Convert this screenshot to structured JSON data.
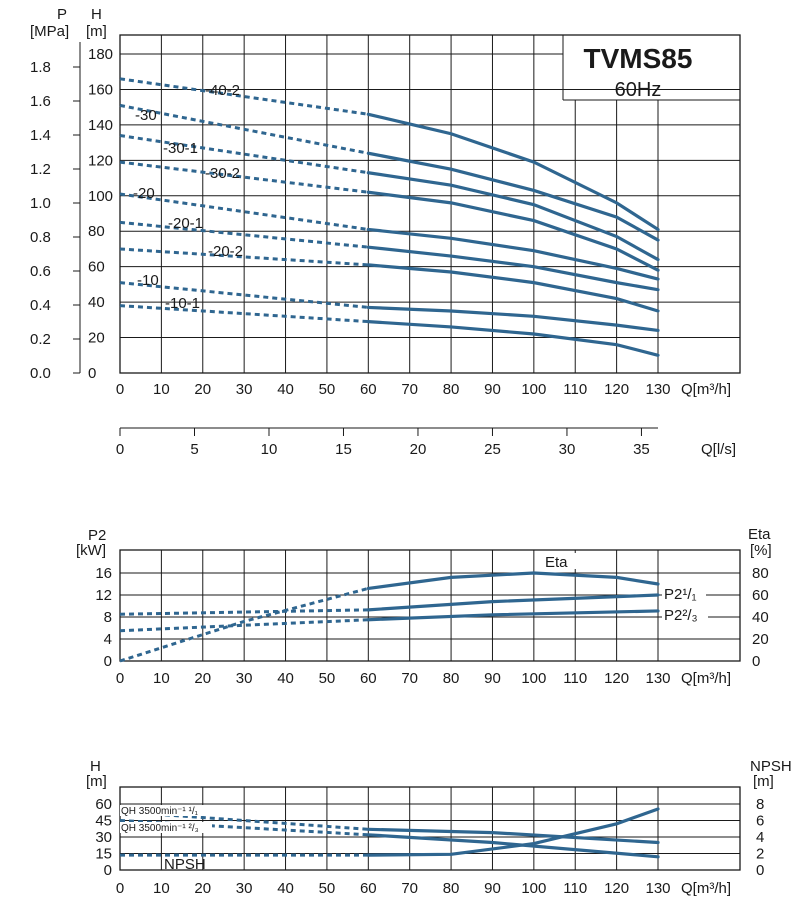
{
  "chart_data": [
    {
      "type": "line",
      "title": "TVMS85",
      "subtitle": "60Hz",
      "xlabel": "Q[m³/h]",
      "x2label": "Q[l/s]",
      "ylabel_left": "P [MPa]",
      "ylabel_right": "H [m]",
      "xlim": [
        0,
        130
      ],
      "ylim": [
        0,
        190
      ],
      "x_ticks": [
        0,
        10,
        20,
        30,
        40,
        50,
        60,
        70,
        80,
        90,
        100,
        110,
        120,
        130
      ],
      "y_ticks": [
        0,
        20,
        40,
        60,
        80,
        100,
        120,
        140,
        160,
        180
      ],
      "p_ticks": [
        "0.0",
        "0.2",
        "0.4",
        "0.6",
        "0.8",
        "1.0",
        "1.2",
        "1.4",
        "1.6",
        "1.8"
      ],
      "ls_ticks": [
        0,
        5,
        10,
        15,
        20,
        25,
        30,
        35
      ],
      "solid_from": 60,
      "series": [
        {
          "name": "-40-2",
          "x": [
            0,
            60,
            80,
            100,
            120,
            130
          ],
          "y": [
            166,
            146,
            135,
            119,
            96,
            81
          ]
        },
        {
          "name": "-30",
          "x": [
            0,
            60,
            80,
            100,
            120,
            130
          ],
          "y": [
            151,
            124,
            115,
            103,
            88,
            75
          ]
        },
        {
          "name": "-30-1",
          "x": [
            0,
            60,
            80,
            100,
            120,
            130
          ],
          "y": [
            134,
            113,
            106,
            95,
            77,
            64
          ]
        },
        {
          "name": "-30-2",
          "x": [
            0,
            60,
            80,
            100,
            120,
            130
          ],
          "y": [
            119,
            102,
            96,
            86,
            70,
            58
          ]
        },
        {
          "name": "-20",
          "x": [
            0,
            60,
            80,
            100,
            120,
            130
          ],
          "y": [
            101,
            81,
            76,
            69,
            59,
            53
          ]
        },
        {
          "name": "-20-1",
          "x": [
            0,
            60,
            80,
            100,
            120,
            130
          ],
          "y": [
            85,
            71,
            66,
            60,
            51,
            47
          ]
        },
        {
          "name": "-20-2",
          "x": [
            0,
            60,
            80,
            100,
            120,
            130
          ],
          "y": [
            70,
            61,
            57,
            51,
            42,
            35
          ]
        },
        {
          "name": "-10",
          "x": [
            0,
            60,
            80,
            100,
            120,
            130
          ],
          "y": [
            51,
            37,
            35,
            32,
            27,
            24
          ]
        },
        {
          "name": "-10-1",
          "x": [
            0,
            60,
            80,
            100,
            120,
            130
          ],
          "y": [
            38,
            29,
            26,
            22,
            16,
            10
          ]
        }
      ]
    },
    {
      "type": "line",
      "xlabel": "Q[m³/h]",
      "ylabel_left": "P2 [kW]",
      "ylabel_right": "Eta [%]",
      "xlim": [
        0,
        130
      ],
      "ylim": [
        0,
        18
      ],
      "y_ticks": [
        0,
        4,
        8,
        12,
        16
      ],
      "eta_ticks": [
        0,
        20,
        40,
        60,
        80
      ],
      "solid_from": 60,
      "series": [
        {
          "name": "Eta",
          "x": [
            0,
            30,
            60,
            80,
            100,
            120,
            130
          ],
          "y": [
            0,
            36,
            66,
            76,
            80,
            76,
            70
          ],
          "axis": "right"
        },
        {
          "name": "P2¹/₁",
          "x": [
            0,
            60,
            90,
            130
          ],
          "y": [
            8.5,
            9.3,
            10.8,
            12.0
          ]
        },
        {
          "name": "P2²/₃",
          "x": [
            0,
            60,
            90,
            130
          ],
          "y": [
            5.5,
            7.5,
            8.4,
            9.1
          ]
        }
      ]
    },
    {
      "type": "line",
      "xlabel": "Q[m³/h]",
      "ylabel_left": "H [m]",
      "ylabel_right": "NPSH [m]",
      "xlim": [
        0,
        130
      ],
      "ylim": [
        0,
        65
      ],
      "y_ticks": [
        0,
        15,
        30,
        45,
        60
      ],
      "npsh_ticks": [
        0,
        2,
        4,
        6,
        8
      ],
      "solid_from": 60,
      "series": [
        {
          "name": "QH 3500min⁻¹ ¹/₁",
          "x": [
            0,
            60,
            90,
            130
          ],
          "y": [
            53,
            37,
            34,
            25
          ]
        },
        {
          "name": "QH 3500min⁻¹ ²/₃",
          "x": [
            0,
            60,
            90,
            130
          ],
          "y": [
            45,
            32,
            25,
            12
          ]
        },
        {
          "name": "NPSH",
          "x": [
            0,
            60,
            80,
            100,
            120,
            130
          ],
          "y": [
            1.8,
            1.8,
            1.9,
            3.2,
            5.6,
            7.4
          ],
          "axis": "right"
        }
      ]
    }
  ]
}
